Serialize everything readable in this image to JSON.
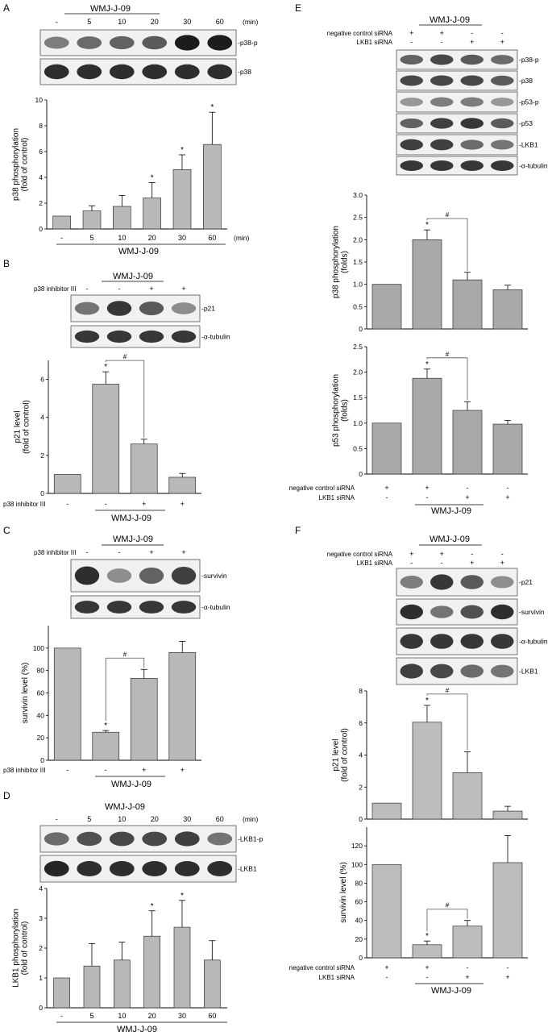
{
  "panels": [
    {
      "letter": "A",
      "title": "WMJ-J-09",
      "unit": "(min)",
      "lanes": [
        "-",
        "5",
        "10",
        "20",
        "30",
        "60"
      ],
      "blots": [
        {
          "label": "-p38-p",
          "intensity": [
            0.45,
            0.55,
            0.6,
            0.65,
            1.0,
            1.0
          ]
        },
        {
          "label": "-p38",
          "intensity": [
            0.9,
            0.9,
            0.9,
            0.9,
            0.9,
            0.9
          ]
        }
      ],
      "chart_data": {
        "type": "bar",
        "categories": [
          "-",
          "5",
          "10",
          "20",
          "30",
          "60"
        ],
        "values": [
          1.0,
          1.4,
          1.75,
          2.4,
          4.6,
          6.55
        ],
        "errors": [
          0,
          0.4,
          0.85,
          1.2,
          1.15,
          2.5
        ],
        "significant": [
          "",
          "",
          "",
          "*",
          "*",
          "*"
        ],
        "ylabel": "p38 phosphorylation\n(fold of control)",
        "xlabel": "WMJ-J-09",
        "ylim": [
          0,
          10
        ],
        "yticks": [
          0,
          2,
          4,
          6,
          8,
          10
        ]
      }
    },
    {
      "letter": "B",
      "title": "WMJ-J-09",
      "treatment": "p38 inhibitor III",
      "lanes": [
        "-",
        "-",
        "+",
        "+"
      ],
      "blots": [
        {
          "label": "-p21",
          "intensity": [
            0.5,
            0.85,
            0.65,
            0.35
          ]
        },
        {
          "label": "-α-tubulin",
          "intensity": [
            0.85,
            0.85,
            0.85,
            0.85
          ]
        }
      ],
      "chart_data": {
        "type": "bar",
        "categories": [
          "-",
          "-",
          "+",
          "+"
        ],
        "values": [
          1.0,
          5.75,
          2.6,
          0.85
        ],
        "errors": [
          0,
          0.65,
          0.25,
          0.2
        ],
        "significant": [
          "",
          "*",
          "",
          ""
        ],
        "ylabel": "p21 level\n(fold of control)",
        "xlabel": "WMJ-J-09",
        "ylim": [
          0,
          7
        ],
        "yticks": [
          0,
          2,
          4,
          6
        ],
        "hash": "#",
        "bracket": [
          1,
          2
        ]
      }
    },
    {
      "letter": "C",
      "title": "WMJ-J-09",
      "treatment": "p38 inhibitor III",
      "lanes": [
        "-",
        "-",
        "+",
        "+"
      ],
      "blots": [
        {
          "label": "-survivin",
          "intensity": [
            0.9,
            0.35,
            0.6,
            0.8
          ]
        },
        {
          "label": "-α-tubulin",
          "intensity": [
            0.85,
            0.85,
            0.85,
            0.85
          ]
        }
      ],
      "chart_data": {
        "type": "bar",
        "categories": [
          "-",
          "-",
          "+",
          "+"
        ],
        "values": [
          100,
          25,
          73,
          96
        ],
        "errors": [
          0,
          1.5,
          8,
          10
        ],
        "significant": [
          "",
          "*",
          "",
          ""
        ],
        "ylabel": "survivin level (%)",
        "xlabel": "WMJ-J-09",
        "ylim": [
          0,
          120
        ],
        "yticks": [
          0,
          20,
          40,
          60,
          80,
          100
        ],
        "hash": "#",
        "bracket": [
          1,
          2
        ]
      }
    },
    {
      "letter": "D",
      "title": "WMJ-J-09",
      "unit": "(min)",
      "lanes": [
        "-",
        "5",
        "10",
        "20",
        "30",
        "60"
      ],
      "blots": [
        {
          "label": "-LKB1-p",
          "intensity": [
            0.55,
            0.7,
            0.75,
            0.75,
            0.8,
            0.5
          ]
        },
        {
          "label": "-LKB1",
          "intensity": [
            0.95,
            0.9,
            0.9,
            0.9,
            0.9,
            0.9
          ]
        }
      ],
      "chart_data": {
        "type": "bar",
        "categories": [
          "-",
          "5",
          "10",
          "20",
          "30",
          "60"
        ],
        "values": [
          1.0,
          1.4,
          1.6,
          2.4,
          2.7,
          1.6
        ],
        "errors": [
          0,
          0.75,
          0.6,
          0.85,
          0.9,
          0.65
        ],
        "significant": [
          "",
          "",
          "",
          "*",
          "*",
          ""
        ],
        "ylabel": "LKB1 phosphorylation\n(fold of control)",
        "xlabel": "WMJ-J-09",
        "ylim": [
          0,
          4
        ],
        "yticks": [
          0,
          1,
          2,
          3,
          4
        ]
      }
    },
    {
      "letter": "E",
      "title": "WMJ-J-09",
      "rows": [
        {
          "label": "negative control siRNA",
          "values": [
            "+",
            "+",
            "-",
            "-"
          ]
        },
        {
          "label": "LKB1 siRNA",
          "values": [
            "-",
            "-",
            "+",
            "+"
          ]
        }
      ],
      "blots": [
        {
          "label": "-p38-p",
          "intensity": [
            0.6,
            0.75,
            0.65,
            0.55
          ]
        },
        {
          "label": "-p38",
          "intensity": [
            0.75,
            0.75,
            0.75,
            0.65
          ]
        },
        {
          "label": "-p53-p",
          "intensity": [
            0.3,
            0.45,
            0.45,
            0.3
          ]
        },
        {
          "label": "-p53",
          "intensity": [
            0.6,
            0.8,
            0.85,
            0.65
          ]
        },
        {
          "label": "-LKB1",
          "intensity": [
            0.8,
            0.8,
            0.55,
            0.5
          ]
        },
        {
          "label": "-α-tubulin",
          "intensity": [
            0.85,
            0.85,
            0.85,
            0.85
          ]
        }
      ],
      "charts": [
        {
          "type": "bar",
          "categories": [
            "1",
            "2",
            "3",
            "4"
          ],
          "values": [
            1.0,
            2.0,
            1.1,
            0.88
          ],
          "errors": [
            0,
            0.22,
            0.17,
            0.1
          ],
          "significant": [
            "",
            "*",
            "",
            ""
          ],
          "ylabel": "p38 phosphorylation\n(folds)",
          "ylim": [
            0,
            3.0
          ],
          "yticks": [
            "0",
            "0.5",
            "1.0",
            "1.5",
            "2.0",
            "2.5",
            "3.0"
          ],
          "hash": "#",
          "bracket": [
            1,
            2
          ]
        },
        {
          "type": "bar",
          "categories": [
            "1",
            "2",
            "3",
            "4"
          ],
          "values": [
            1.0,
            1.88,
            1.25,
            0.98
          ],
          "errors": [
            0,
            0.18,
            0.17,
            0.07
          ],
          "significant": [
            "",
            "*",
            "",
            ""
          ],
          "ylabel": "p53 phosphorylation\n(folds)",
          "ylim": [
            0,
            2.5
          ],
          "yticks": [
            "0",
            "0.5",
            "1.0",
            "1.5",
            "2.0",
            "2.5"
          ],
          "hash": "#",
          "bracket": [
            1,
            2
          ]
        }
      ],
      "xlabel": "WMJ-J-09"
    },
    {
      "letter": "F",
      "title": "WMJ-J-09",
      "rows": [
        {
          "label": "negative control siRNA",
          "values": [
            "+",
            "+",
            "-",
            "-"
          ]
        },
        {
          "label": "LKB1 siRNA",
          "values": [
            "-",
            "-",
            "+",
            "+"
          ]
        }
      ],
      "blots": [
        {
          "label": "-p21",
          "intensity": [
            0.45,
            0.85,
            0.65,
            0.35
          ]
        },
        {
          "label": "-survivin",
          "intensity": [
            0.9,
            0.5,
            0.7,
            0.9
          ]
        },
        {
          "label": "-α-tubulin",
          "intensity": [
            0.85,
            0.85,
            0.85,
            0.85
          ]
        },
        {
          "label": "-LKB1",
          "intensity": [
            0.8,
            0.75,
            0.55,
            0.5
          ]
        }
      ],
      "charts": [
        {
          "type": "bar",
          "categories": [
            "1",
            "2",
            "3",
            "4"
          ],
          "values": [
            1.0,
            6.05,
            2.9,
            0.5
          ],
          "errors": [
            0,
            1.05,
            1.3,
            0.3
          ],
          "significant": [
            "",
            "*",
            "",
            ""
          ],
          "ylabel": "p21 level\n(fold of control)",
          "ylim": [
            0,
            8
          ],
          "yticks": [
            "0",
            "2",
            "4",
            "6",
            "8"
          ],
          "hash": "#",
          "bracket": [
            1,
            2
          ]
        },
        {
          "type": "bar",
          "categories": [
            "1",
            "2",
            "3",
            "4"
          ],
          "values": [
            100,
            14,
            34,
            102
          ],
          "errors": [
            0,
            4,
            6,
            29
          ],
          "significant": [
            "",
            "*",
            "",
            ""
          ],
          "ylabel": "survivin level (%)",
          "ylim": [
            0,
            140
          ],
          "yticks": [
            "0",
            "20",
            "40",
            "60",
            "80",
            "100",
            "120"
          ],
          "hash": "#",
          "bracket": [
            1,
            2
          ]
        }
      ],
      "xlabel": "WMJ-J-09"
    }
  ]
}
